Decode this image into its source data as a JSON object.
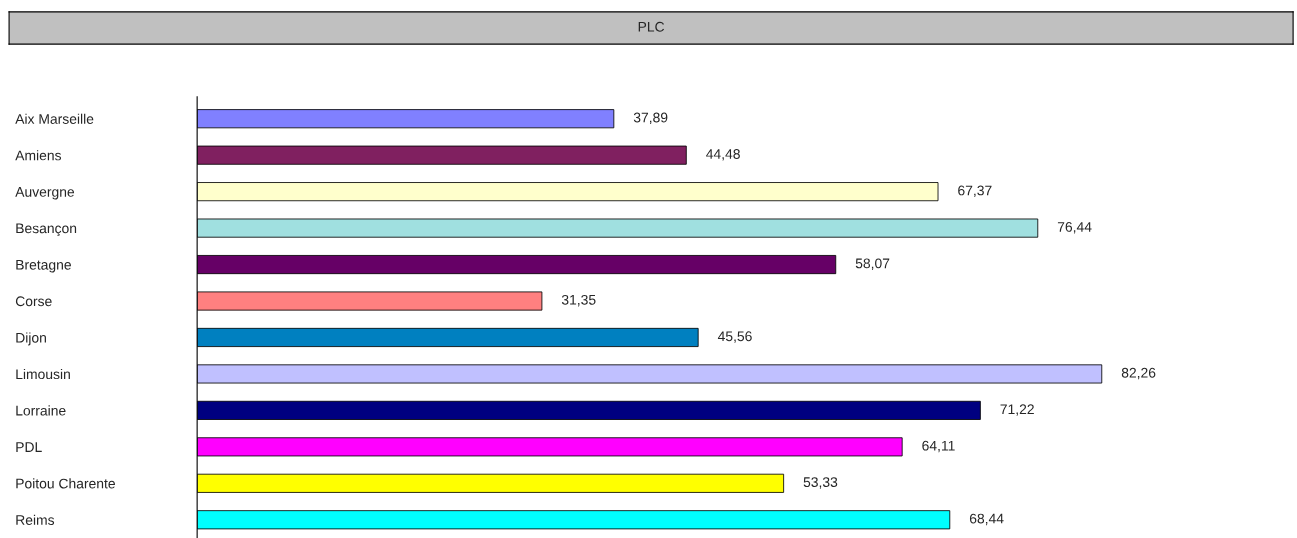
{
  "chart_data": {
    "type": "bar",
    "orientation": "horizontal",
    "title": "PLC",
    "categories": [
      "Aix Marseille",
      "Amiens",
      "Auvergne",
      "Besançon",
      "Bretagne",
      "Corse",
      "Dijon",
      "Limousin",
      "Lorraine",
      "PDL",
      "Poitou Charente",
      "Reims"
    ],
    "values": [
      37.89,
      44.48,
      67.37,
      76.44,
      58.07,
      31.35,
      45.56,
      82.26,
      71.22,
      64.11,
      53.33,
      68.44
    ],
    "colors": [
      "#8080ff",
      "#802060",
      "#ffffcc",
      "#a0e0e0",
      "#660066",
      "#ff8080",
      "#0080c0",
      "#c0c0ff",
      "#000080",
      "#ff00ff",
      "#ffff00",
      "#00ffff"
    ],
    "value_labels": [
      "37,89",
      "44,48",
      "67,37",
      "76,44",
      "58,07",
      "31,35",
      "45,56",
      "82,26",
      "71,22",
      "64,11",
      "53,33",
      "68,44"
    ],
    "grid": false,
    "legend": false
  }
}
